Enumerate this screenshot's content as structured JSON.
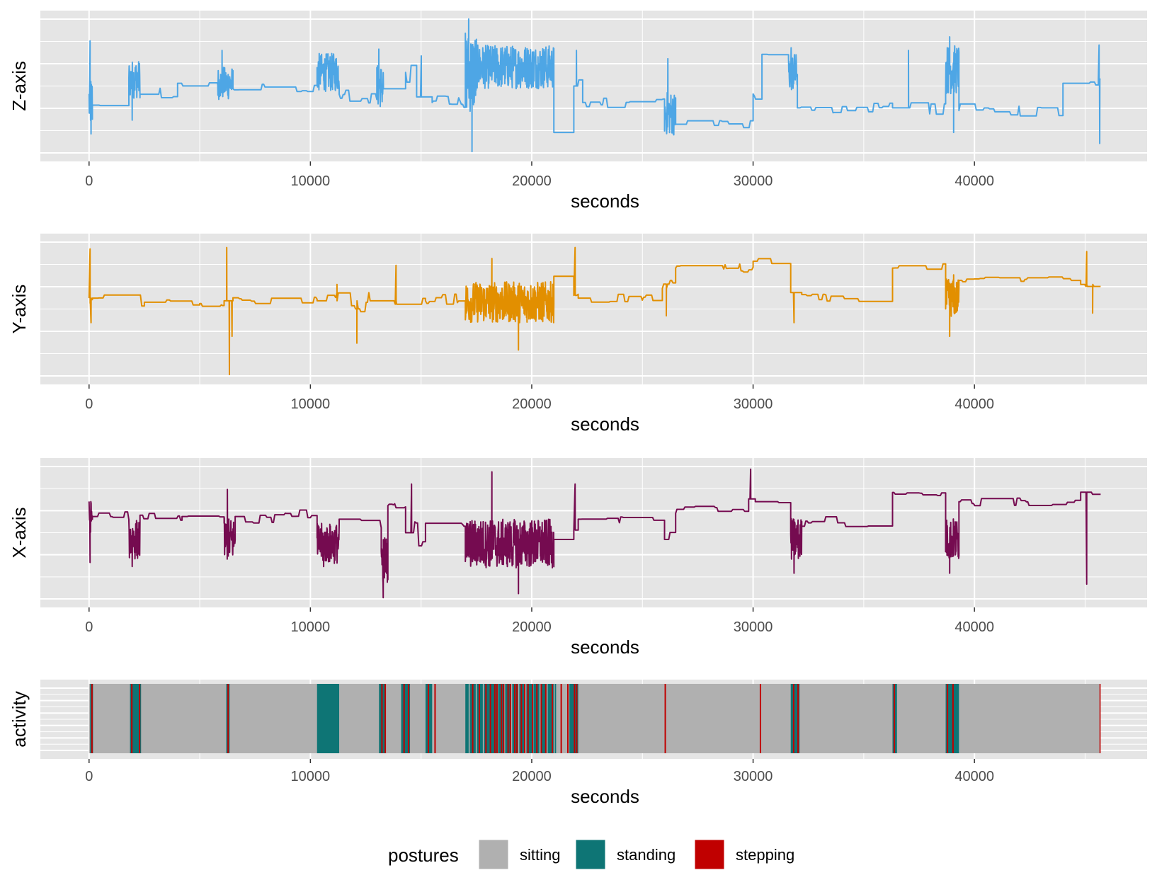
{
  "colors": {
    "panel_bg": "#E5E5E5",
    "grid": "#FFFFFF",
    "z_line": "#4EA6E5",
    "y_line": "#E28F00",
    "x_line": "#750B50",
    "sitting": "#B0B0B0",
    "standing": "#0E7575",
    "stepping": "#C00000"
  },
  "chart_data": [
    {
      "type": "line",
      "ylabel": "Z-axis",
      "xlabel": "seconds",
      "xlim": [
        -2200,
        47800
      ],
      "ylim": [
        0,
        1
      ],
      "xticks": [
        0,
        10000,
        20000,
        30000,
        40000
      ],
      "xtick_labels": [
        "0",
        "10000",
        "20000",
        "30000",
        "40000"
      ],
      "series": [
        {
          "name": "Z-axis",
          "color_key": "z_line",
          "segments": [
            {
              "x0": 0,
              "x1": 150,
              "level": 0.38,
              "noise": 0.2,
              "spikes": [
                0.83,
                0.15
              ]
            },
            {
              "x0": 150,
              "x1": 1800,
              "level": 0.36,
              "noise": 0.05
            },
            {
              "x0": 1800,
              "x1": 2300,
              "level": 0.55,
              "noise": 0.14,
              "spikes": [
                0.25
              ]
            },
            {
              "x0": 2300,
              "x1": 4000,
              "level": 0.44,
              "noise": 0.05
            },
            {
              "x0": 4000,
              "x1": 5800,
              "level": 0.52,
              "noise": 0.04
            },
            {
              "x0": 5800,
              "x1": 6500,
              "level": 0.52,
              "noise": 0.12,
              "spikes": [
                0.76
              ]
            },
            {
              "x0": 6500,
              "x1": 10300,
              "level": 0.48,
              "noise": 0.04
            },
            {
              "x0": 10300,
              "x1": 11300,
              "level": 0.6,
              "noise": 0.14
            },
            {
              "x0": 11300,
              "x1": 13000,
              "level": 0.44,
              "noise": 0.07
            },
            {
              "x0": 13000,
              "x1": 13300,
              "level": 0.5,
              "noise": 0.16,
              "spikes": [
                0.77
              ]
            },
            {
              "x0": 13300,
              "x1": 14300,
              "level": 0.48,
              "noise": 0.03
            },
            {
              "x0": 14300,
              "x1": 14800,
              "level": 0.6,
              "noise": 0.1
            },
            {
              "x0": 14800,
              "x1": 15500,
              "level": 0.42,
              "noise": 0.08,
              "spikes": [
                0.72
              ]
            },
            {
              "x0": 15500,
              "x1": 17000,
              "level": 0.38,
              "noise": 0.05
            },
            {
              "x0": 17000,
              "x1": 17500,
              "level": 0.6,
              "noise": 0.3,
              "spikes": [
                0.99,
                0.02
              ]
            },
            {
              "x0": 17500,
              "x1": 21000,
              "level": 0.64,
              "noise": 0.16
            },
            {
              "x0": 21000,
              "x1": 21900,
              "level": 0.16,
              "noise": 0.0
            },
            {
              "x0": 21900,
              "x1": 22300,
              "level": 0.5,
              "noise": 0.08,
              "spikes": [
                0.76
              ]
            },
            {
              "x0": 22300,
              "x1": 26000,
              "level": 0.38,
              "noise": 0.04
            },
            {
              "x0": 26000,
              "x1": 26500,
              "level": 0.3,
              "noise": 0.16,
              "spikes": [
                0.7
              ]
            },
            {
              "x0": 26500,
              "x1": 30000,
              "level": 0.22,
              "noise": 0.03
            },
            {
              "x0": 30000,
              "x1": 30400,
              "level": 0.44,
              "noise": 0.05
            },
            {
              "x0": 30400,
              "x1": 31600,
              "level": 0.73,
              "noise": 0.02
            },
            {
              "x0": 31600,
              "x1": 32000,
              "level": 0.6,
              "noise": 0.14,
              "spikes": [
                0.78
              ]
            },
            {
              "x0": 32000,
              "x1": 36300,
              "level": 0.34,
              "noise": 0.04
            },
            {
              "x0": 36300,
              "x1": 38700,
              "level": 0.34,
              "noise": 0.05,
              "spikes": [
                0.76
              ]
            },
            {
              "x0": 38700,
              "x1": 39300,
              "level": 0.62,
              "noise": 0.18,
              "spikes": [
                0.86,
                0.16
              ]
            },
            {
              "x0": 39300,
              "x1": 44000,
              "level": 0.32,
              "noise": 0.05
            },
            {
              "x0": 44000,
              "x1": 45600,
              "level": 0.52,
              "noise": 0.03
            },
            {
              "x0": 45600,
              "x1": 45700,
              "level": 0.55,
              "noise": 0.0,
              "spikes": [
                0.8,
                0.08
              ]
            }
          ]
        }
      ]
    },
    {
      "type": "line",
      "ylabel": "Y-axis",
      "xlabel": "seconds",
      "xlim": [
        -2200,
        47800
      ],
      "ylim": [
        0,
        1
      ],
      "xticks": [
        0,
        10000,
        20000,
        30000,
        40000
      ],
      "xtick_labels": [
        "0",
        "10000",
        "20000",
        "30000",
        "40000"
      ],
      "series": [
        {
          "name": "Y-axis",
          "color_key": "y_line",
          "segments": [
            {
              "x0": 0,
              "x1": 150,
              "level": 0.58,
              "noise": 0.1,
              "spikes": [
                0.94,
                0.4
              ]
            },
            {
              "x0": 150,
              "x1": 2500,
              "level": 0.58,
              "noise": 0.06
            },
            {
              "x0": 2500,
              "x1": 5000,
              "level": 0.55,
              "noise": 0.03
            },
            {
              "x0": 5000,
              "x1": 6100,
              "level": 0.54,
              "noise": 0.02
            },
            {
              "x0": 6100,
              "x1": 6500,
              "level": 0.56,
              "noise": 0.08,
              "spikes": [
                0.95,
                0.02,
                0.3
              ]
            },
            {
              "x0": 6500,
              "x1": 10300,
              "level": 0.56,
              "noise": 0.03
            },
            {
              "x0": 10300,
              "x1": 13300,
              "level": 0.56,
              "noise": 0.08,
              "spikes": [
                0.68,
                0.25
              ]
            },
            {
              "x0": 13300,
              "x1": 15200,
              "level": 0.56,
              "noise": 0.05,
              "spikes": [
                0.82
              ]
            },
            {
              "x0": 15200,
              "x1": 17000,
              "level": 0.56,
              "noise": 0.05
            },
            {
              "x0": 17000,
              "x1": 21000,
              "level": 0.55,
              "noise": 0.15,
              "spikes": [
                0.87,
                0.2
              ]
            },
            {
              "x0": 21000,
              "x1": 21900,
              "level": 0.74,
              "noise": 0.0
            },
            {
              "x0": 21900,
              "x1": 22100,
              "level": 0.6,
              "noise": 0.1,
              "spikes": [
                0.95
              ]
            },
            {
              "x0": 22100,
              "x1": 25900,
              "level": 0.58,
              "noise": 0.03
            },
            {
              "x0": 25900,
              "x1": 26500,
              "level": 0.65,
              "noise": 0.08,
              "spikes": [
                0.45
              ]
            },
            {
              "x0": 26500,
              "x1": 30000,
              "level": 0.8,
              "noise": 0.03
            },
            {
              "x0": 30000,
              "x1": 31700,
              "level": 0.85,
              "noise": 0.02
            },
            {
              "x0": 31700,
              "x1": 32200,
              "level": 0.62,
              "noise": 0.1,
              "spikes": [
                0.4
              ]
            },
            {
              "x0": 32200,
              "x1": 36300,
              "level": 0.58,
              "noise": 0.03
            },
            {
              "x0": 36300,
              "x1": 38700,
              "level": 0.8,
              "noise": 0.04
            },
            {
              "x0": 38700,
              "x1": 39300,
              "level": 0.58,
              "noise": 0.14,
              "spikes": [
                0.3,
                0.75
              ]
            },
            {
              "x0": 39300,
              "x1": 44800,
              "level": 0.71,
              "noise": 0.03
            },
            {
              "x0": 44800,
              "x1": 45700,
              "level": 0.68,
              "noise": 0.02,
              "spikes": [
                0.92,
                0.47
              ]
            }
          ]
        }
      ]
    },
    {
      "type": "line",
      "ylabel": "X-axis",
      "xlabel": "seconds",
      "xlim": [
        -2200,
        47800
      ],
      "ylim": [
        0,
        1
      ],
      "xticks": [
        0,
        10000,
        20000,
        30000,
        40000
      ],
      "xtick_labels": [
        "0",
        "10000",
        "20000",
        "30000",
        "40000"
      ],
      "series": [
        {
          "name": "X-axis",
          "color_key": "x_line",
          "segments": [
            {
              "x0": 0,
              "x1": 150,
              "level": 0.62,
              "noise": 0.12,
              "spikes": [
                0.28
              ]
            },
            {
              "x0": 150,
              "x1": 1800,
              "level": 0.62,
              "noise": 0.06
            },
            {
              "x0": 1800,
              "x1": 2300,
              "level": 0.45,
              "noise": 0.15,
              "spikes": [
                0.25
              ]
            },
            {
              "x0": 2300,
              "x1": 4200,
              "level": 0.63,
              "noise": 0.05
            },
            {
              "x0": 4200,
              "x1": 6100,
              "level": 0.62,
              "noise": 0.03
            },
            {
              "x0": 6100,
              "x1": 6600,
              "level": 0.45,
              "noise": 0.16,
              "spikes": [
                0.82
              ]
            },
            {
              "x0": 6600,
              "x1": 10300,
              "level": 0.62,
              "noise": 0.05
            },
            {
              "x0": 10300,
              "x1": 11300,
              "level": 0.42,
              "noise": 0.15,
              "spikes": [
                0.25
              ]
            },
            {
              "x0": 11300,
              "x1": 13200,
              "level": 0.6,
              "noise": 0.08
            },
            {
              "x0": 13200,
              "x1": 13500,
              "level": 0.3,
              "noise": 0.18,
              "spikes": [
                0.02
              ]
            },
            {
              "x0": 13500,
              "x1": 14300,
              "level": 0.7,
              "noise": 0.02
            },
            {
              "x0": 14300,
              "x1": 15200,
              "level": 0.5,
              "noise": 0.1,
              "spikes": [
                0.86
              ]
            },
            {
              "x0": 15200,
              "x1": 17000,
              "level": 0.57,
              "noise": 0.03
            },
            {
              "x0": 17000,
              "x1": 21000,
              "level": 0.42,
              "noise": 0.18,
              "spikes": [
                0.95,
                0.05
              ]
            },
            {
              "x0": 21000,
              "x1": 21900,
              "level": 0.45,
              "noise": 0.0
            },
            {
              "x0": 21900,
              "x1": 22100,
              "level": 0.52,
              "noise": 0.1,
              "spikes": [
                0.86
              ]
            },
            {
              "x0": 22100,
              "x1": 26000,
              "level": 0.6,
              "noise": 0.04
            },
            {
              "x0": 26000,
              "x1": 26500,
              "level": 0.45,
              "noise": 0.08
            },
            {
              "x0": 26500,
              "x1": 29800,
              "level": 0.67,
              "noise": 0.03
            },
            {
              "x0": 29800,
              "x1": 30100,
              "level": 0.75,
              "noise": 0.06,
              "spikes": [
                0.97
              ]
            },
            {
              "x0": 30100,
              "x1": 31700,
              "level": 0.73,
              "noise": 0.02
            },
            {
              "x0": 31700,
              "x1": 32200,
              "level": 0.45,
              "noise": 0.16,
              "spikes": [
                0.2
              ]
            },
            {
              "x0": 32200,
              "x1": 36300,
              "level": 0.58,
              "noise": 0.04
            },
            {
              "x0": 36300,
              "x1": 38700,
              "level": 0.78,
              "noise": 0.02
            },
            {
              "x0": 38700,
              "x1": 39300,
              "level": 0.45,
              "noise": 0.16,
              "spikes": [
                0.2
              ]
            },
            {
              "x0": 39300,
              "x1": 44800,
              "level": 0.73,
              "noise": 0.03
            },
            {
              "x0": 44800,
              "x1": 45700,
              "level": 0.8,
              "noise": 0.03,
              "spikes": [
                0.12
              ]
            }
          ]
        }
      ]
    },
    {
      "type": "bar",
      "ylabel": "activity",
      "xlabel": "seconds",
      "xlim": [
        -2200,
        47800
      ],
      "xticks": [
        0,
        10000,
        20000,
        30000,
        40000
      ],
      "xtick_labels": [
        "0",
        "10000",
        "20000",
        "30000",
        "40000"
      ],
      "description_of_encoding": "posture over time as colored vertical strips",
      "intervals": [
        {
          "start": 0,
          "end": 45700,
          "posture": "sitting"
        },
        {
          "start": 50,
          "end": 180,
          "posture": "standing"
        },
        {
          "start": 1850,
          "end": 2350,
          "posture": "standing"
        },
        {
          "start": 6200,
          "end": 6350,
          "posture": "standing"
        },
        {
          "start": 10300,
          "end": 11300,
          "posture": "standing"
        },
        {
          "start": 13100,
          "end": 13400,
          "posture": "standing"
        },
        {
          "start": 14100,
          "end": 14500,
          "posture": "standing"
        },
        {
          "start": 15200,
          "end": 15500,
          "posture": "standing"
        },
        {
          "start": 17000,
          "end": 21100,
          "posture": "standing"
        },
        {
          "start": 21700,
          "end": 22100,
          "posture": "standing"
        },
        {
          "start": 31700,
          "end": 32100,
          "posture": "standing"
        },
        {
          "start": 36300,
          "end": 36500,
          "posture": "standing"
        },
        {
          "start": 38700,
          "end": 39300,
          "posture": "standing"
        },
        {
          "start": 45650,
          "end": 45700,
          "posture": "stepping"
        }
      ],
      "stepping_events": [
        100,
        1900,
        2250,
        6250,
        13200,
        13350,
        14200,
        14400,
        15300,
        15600,
        17300,
        17600,
        17900,
        18100,
        18300,
        18400,
        18600,
        18700,
        18900,
        19000,
        19200,
        19300,
        19500,
        19650,
        19800,
        20000,
        20200,
        20400,
        20600,
        20900,
        21300,
        21600,
        21900,
        22000,
        26000,
        30300,
        31800,
        32000,
        36350,
        38750,
        39000
      ]
    }
  ],
  "legend": {
    "title": "postures",
    "items": [
      {
        "label": "sitting",
        "color_key": "sitting"
      },
      {
        "label": "standing",
        "color_key": "standing"
      },
      {
        "label": "stepping",
        "color_key": "stepping"
      }
    ]
  }
}
